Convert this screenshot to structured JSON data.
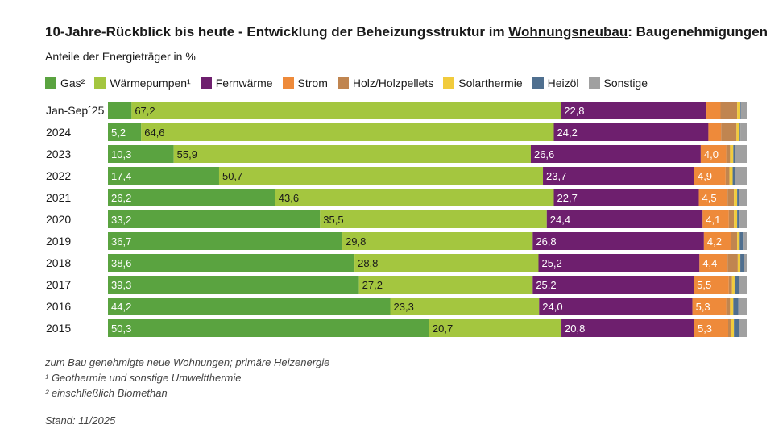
{
  "header": {
    "title_pre": "10-Jahre-Rückblick bis heute - Entwicklung der Beheizungsstruktur im ",
    "title_underlined": "Wohnungsneubau",
    "title_post": ": Baugenehmigungen",
    "subtitle": "Anteile der Energieträger in %"
  },
  "legend": [
    {
      "label": "Gas²",
      "color": "#5aa340"
    },
    {
      "label": "Wärmepumpen¹",
      "color": "#a4c63f"
    },
    {
      "label": "Fernwärme",
      "color": "#6e1f6e"
    },
    {
      "label": "Strom",
      "color": "#ee8a3a"
    },
    {
      "label": "Holz/Holzpellets",
      "color": "#c08550"
    },
    {
      "label": "Solarthermie",
      "color": "#f1cb3c"
    },
    {
      "label": "Heizöl",
      "color": "#4f6f8f"
    },
    {
      "label": "Sonstige",
      "color": "#a0a0a0"
    }
  ],
  "chart_data": {
    "type": "bar",
    "orientation": "horizontal",
    "stacked": true,
    "title": "10-Jahre-Rückblick bis heute - Entwicklung der Beheizungsstruktur im Wohnungsneubau: Baugenehmigungen",
    "ylabel": "",
    "xlabel": "Anteile der Energieträger in %",
    "xlim": [
      0,
      100
    ],
    "categories": [
      "Jan-Sep´25",
      "2024",
      "2023",
      "2022",
      "2021",
      "2020",
      "2019",
      "2018",
      "2017",
      "2016",
      "2015"
    ],
    "series": [
      {
        "name": "Gas²",
        "values": [
          3.7,
          5.2,
          10.3,
          17.4,
          26.2,
          33.2,
          36.7,
          38.6,
          39.3,
          44.2,
          50.3
        ],
        "labels": [
          "",
          "5,2",
          "10,3",
          "17,4",
          "26,2",
          "33,2",
          "36,7",
          "38,6",
          "39,3",
          "44,2",
          "50,3"
        ]
      },
      {
        "name": "Wärmepumpen¹",
        "values": [
          67.2,
          64.6,
          55.9,
          50.7,
          43.6,
          35.5,
          29.8,
          28.8,
          27.2,
          23.3,
          20.7
        ],
        "labels": [
          "67,2",
          "64,6",
          "55,9",
          "50,7",
          "43,6",
          "35,5",
          "29,8",
          "28,8",
          "27,2",
          "23,3",
          "20,7"
        ]
      },
      {
        "name": "Fernwärme",
        "values": [
          22.8,
          24.2,
          26.6,
          23.7,
          22.7,
          24.4,
          26.8,
          25.2,
          25.2,
          24.0,
          20.8
        ],
        "labels": [
          "22,8",
          "24,2",
          "26,6",
          "23,7",
          "22,7",
          "24,4",
          "26,8",
          "25,2",
          "25,2",
          "24,0",
          "20,8"
        ]
      },
      {
        "name": "Strom",
        "values": [
          2.2,
          2.0,
          4.0,
          4.9,
          4.5,
          4.1,
          4.2,
          4.4,
          5.5,
          5.3,
          5.3
        ],
        "labels": [
          "",
          "",
          "4,0",
          "4,9",
          "4,5",
          "4,1",
          "4,2",
          "4,4",
          "5,5",
          "5,3",
          "5,3"
        ]
      },
      {
        "name": "Holz/Holzpellets",
        "values": [
          2.6,
          2.4,
          0.6,
          0.6,
          1.0,
          0.8,
          1.0,
          1.6,
          0.5,
          0.6,
          0.4
        ]
      },
      {
        "name": "Solarthermie",
        "values": [
          0.5,
          0.5,
          0.5,
          0.5,
          0.5,
          0.5,
          0.4,
          0.4,
          0.4,
          0.5,
          0.5
        ]
      },
      {
        "name": "Heizöl",
        "values": [
          0.1,
          0.1,
          0.3,
          0.4,
          0.3,
          0.4,
          0.5,
          0.5,
          0.7,
          0.8,
          0.8
        ]
      },
      {
        "name": "Sonstige",
        "values": [
          0.9,
          1.0,
          1.8,
          1.8,
          1.2,
          1.1,
          0.6,
          0.5,
          1.2,
          1.3,
          1.2
        ]
      }
    ]
  },
  "footnotes": {
    "note1": "zum Bau genehmigte neue Wohnungen; primäre Heizenergie",
    "note2": "¹ Geothermie und sonstige Umweltthermie",
    "note3": "² einschließlich Biomethan",
    "stand": "Stand: 11/2025"
  }
}
